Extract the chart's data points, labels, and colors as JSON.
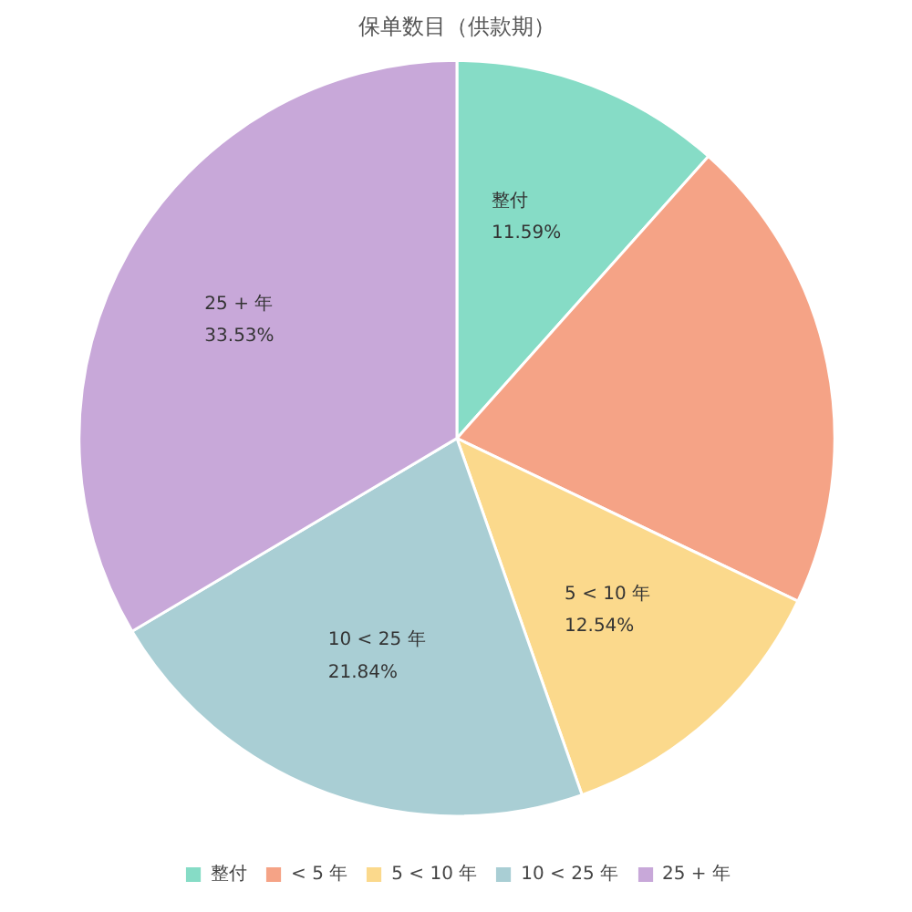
{
  "chart_data": {
    "type": "pie",
    "title": "保单数目（供款期）",
    "categories": [
      "整付",
      "< 5 年",
      "5 < 10 年",
      "10 < 25 年",
      "25 + 年"
    ],
    "values": [
      11.59,
      20.5,
      12.54,
      21.84,
      33.53
    ],
    "colors": [
      "#86dcc6",
      "#f5a386",
      "#fbd98c",
      "#a9ced4",
      "#c8a8d9"
    ],
    "value_labels": [
      "11.59%",
      null,
      "12.54%",
      "21.84%",
      "33.53%"
    ],
    "legend": "bottom"
  }
}
